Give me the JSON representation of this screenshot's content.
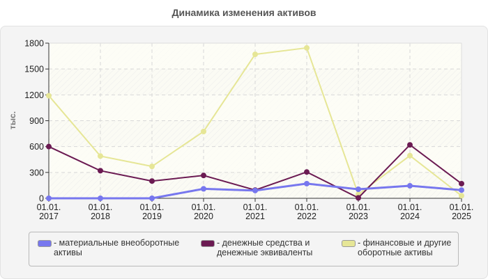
{
  "title": "Динамика изменения активов",
  "chart_data": {
    "type": "line",
    "title": "Динамика изменения активов",
    "xlabel": "",
    "ylabel": "тыс.",
    "ylim": [
      0,
      1800
    ],
    "yticks": [
      0,
      300,
      600,
      900,
      1200,
      1500,
      1800
    ],
    "grid": true,
    "legend_position": "bottom",
    "categories": [
      "01.01.2017",
      "01.01.2018",
      "01.01.2019",
      "01.01.2020",
      "01.01.2021",
      "01.01.2022",
      "01.01.2023",
      "01.01.2024",
      "01.01.2025"
    ],
    "category_lines": [
      [
        "01.01.",
        "2017"
      ],
      [
        "01.01.",
        "2018"
      ],
      [
        "01.01.",
        "2019"
      ],
      [
        "01.01.",
        "2020"
      ],
      [
        "01.01.",
        "2021"
      ],
      [
        "01.01.",
        "2022"
      ],
      [
        "01.01.",
        "2023"
      ],
      [
        "01.01.",
        "2024"
      ],
      [
        "01.01.",
        "2025"
      ]
    ],
    "series": [
      {
        "name": "материальные внеоборотные активы",
        "color": "#7777ee",
        "values": [
          0,
          0,
          0,
          110,
          90,
          170,
          105,
          145,
          95
        ]
      },
      {
        "name": "денежные средства и денежные эквиваленты",
        "color": "#6b1a52",
        "values": [
          600,
          320,
          200,
          265,
          95,
          305,
          5,
          620,
          170
        ]
      },
      {
        "name": "финансовые и другие оборотные активы",
        "color": "#e6e696",
        "values": [
          1190,
          490,
          370,
          775,
          1670,
          1745,
          45,
          495,
          30
        ]
      }
    ]
  },
  "legend": [
    {
      "label": "- материальные внеоборотные\nактивы",
      "color": "#7777ee"
    },
    {
      "label": "- денежные средства и\nденежные эквиваленты",
      "color": "#6b1a52"
    },
    {
      "label": "- финансовые и другие\nоборотные активы",
      "color": "#e6e696"
    }
  ]
}
